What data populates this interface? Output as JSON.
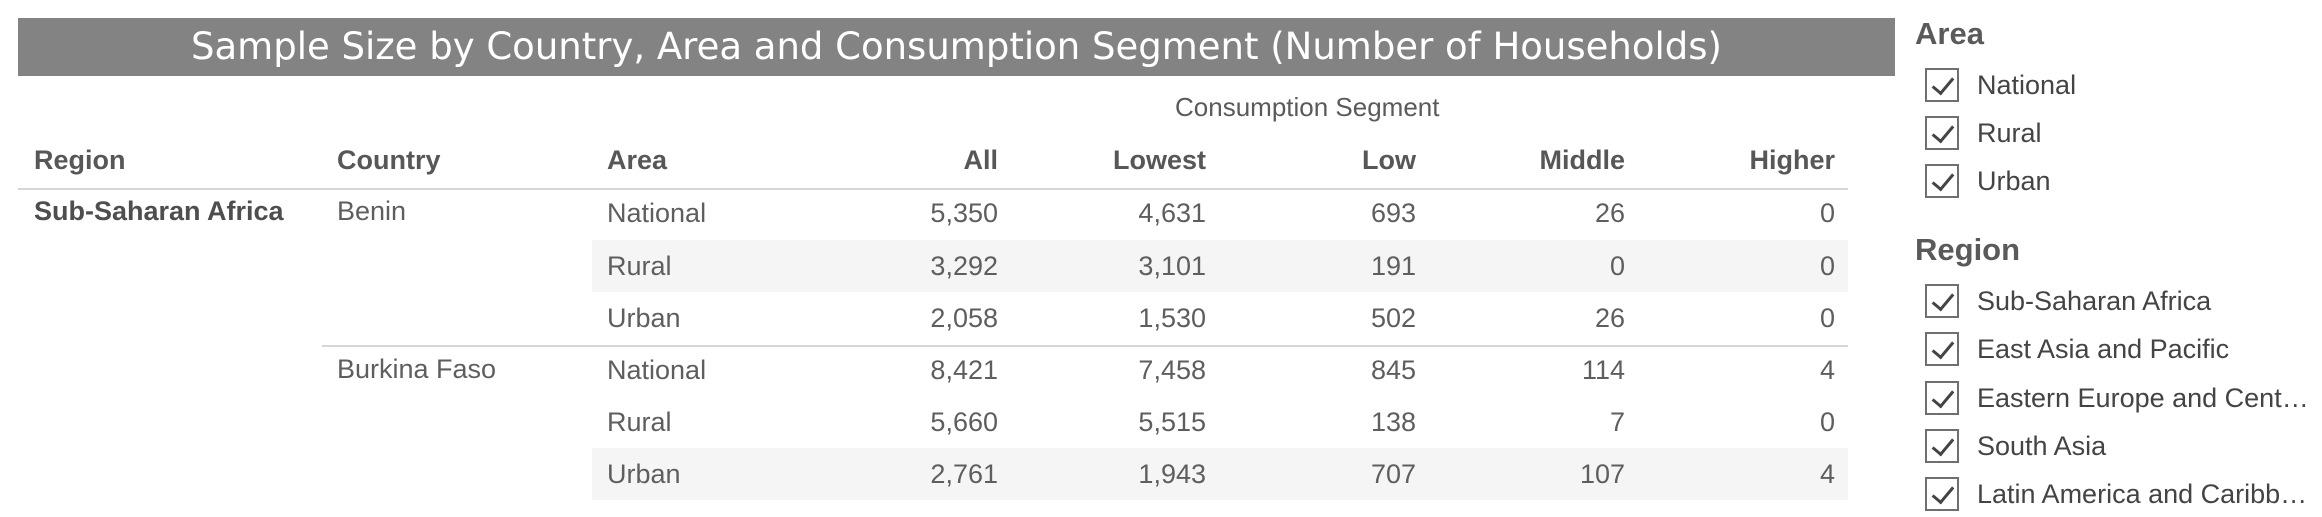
{
  "title": "Sample Size by Country, Area and Consumption Segment (Number of Households)",
  "segment_header": "Consumption Segment",
  "columns": {
    "region": "Region",
    "country": "Country",
    "area": "Area",
    "all": "All",
    "lowest": "Lowest",
    "low": "Low",
    "middle": "Middle",
    "higher": "Higher"
  },
  "region_name": "Sub-Saharan Africa",
  "countries": [
    {
      "name": "Benin",
      "rows": [
        {
          "area": "National",
          "all": "5,350",
          "lowest": "4,631",
          "low": "693",
          "middle": "26",
          "higher": "0"
        },
        {
          "area": "Rural",
          "all": "3,292",
          "lowest": "3,101",
          "low": "191",
          "middle": "0",
          "higher": "0"
        },
        {
          "area": "Urban",
          "all": "2,058",
          "lowest": "1,530",
          "low": "502",
          "middle": "26",
          "higher": "0"
        }
      ]
    },
    {
      "name": "Burkina Faso",
      "rows": [
        {
          "area": "National",
          "all": "8,421",
          "lowest": "7,458",
          "low": "845",
          "middle": "114",
          "higher": "4"
        },
        {
          "area": "Rural",
          "all": "5,660",
          "lowest": "5,515",
          "low": "138",
          "middle": "7",
          "higher": "0"
        },
        {
          "area": "Urban",
          "all": "2,761",
          "lowest": "1,943",
          "low": "707",
          "middle": "107",
          "higher": "4"
        }
      ]
    }
  ],
  "filters": {
    "area_title": "Area",
    "area_items": [
      "National",
      "Rural",
      "Urban"
    ],
    "region_title": "Region",
    "region_items": [
      "Sub-Saharan Africa",
      "East Asia and Pacific",
      "Eastern Europe and Cent…",
      "South Asia",
      "Latin America and Caribb…"
    ]
  }
}
